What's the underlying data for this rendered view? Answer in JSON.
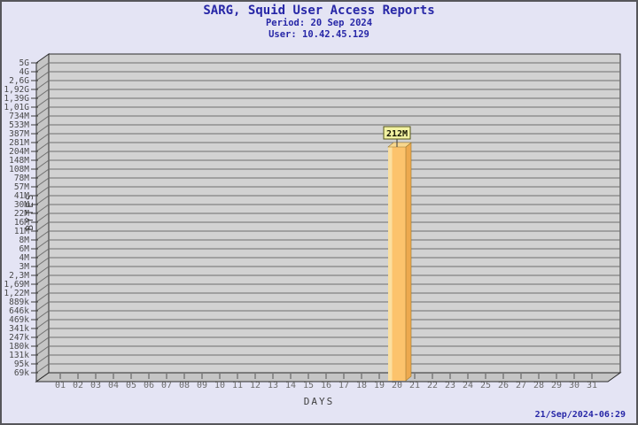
{
  "footer": {
    "timestamp": "21/Sep/2024-06:29"
  },
  "chart_data": {
    "type": "bar",
    "title": "SARG, Squid User Access Reports",
    "period": "Period: 20 Sep 2024",
    "user": "User: 10.42.45.129",
    "xlabel": "DAYS",
    "ylabel": "BYTES",
    "y_scale": "logarithmic",
    "ylim": [
      "69k",
      "5G"
    ],
    "grid": true,
    "x_ticks": [
      "01",
      "02",
      "03",
      "04",
      "05",
      "06",
      "07",
      "08",
      "09",
      "10",
      "11",
      "12",
      "13",
      "14",
      "15",
      "16",
      "17",
      "18",
      "19",
      "20",
      "21",
      "22",
      "23",
      "24",
      "25",
      "26",
      "27",
      "28",
      "29",
      "30",
      "31"
    ],
    "y_ticks": [
      "5G",
      "4G",
      "2,6G",
      "1,92G",
      "1,39G",
      "1,01G",
      "734M",
      "533M",
      "387M",
      "281M",
      "204M",
      "148M",
      "108M",
      "78M",
      "57M",
      "41M",
      "30M",
      "22M",
      "16M",
      "11M",
      "8M",
      "6M",
      "4M",
      "3M",
      "2,3M",
      "1,69M",
      "1,22M",
      "889k",
      "646k",
      "469k",
      "341k",
      "247k",
      "180k",
      "131k",
      "95k",
      "69k"
    ],
    "bars": [
      {
        "day": "20",
        "value_label": "212M"
      }
    ],
    "colors": {
      "background": "#e4e4f4",
      "title_text": "#2727a7",
      "wall": "#d2d2d2",
      "wall_side": "#c5c5c5",
      "grid": "#6f6f6f",
      "frame": "#2b2b2b",
      "bar_front": "#fcc36c",
      "bar_highlight": "#fbdf9f",
      "bar_side": "#eda94e",
      "bar_top": "#f7d78f",
      "callout_bg": "#f2f2a2",
      "callout_border": "#55551b"
    }
  }
}
